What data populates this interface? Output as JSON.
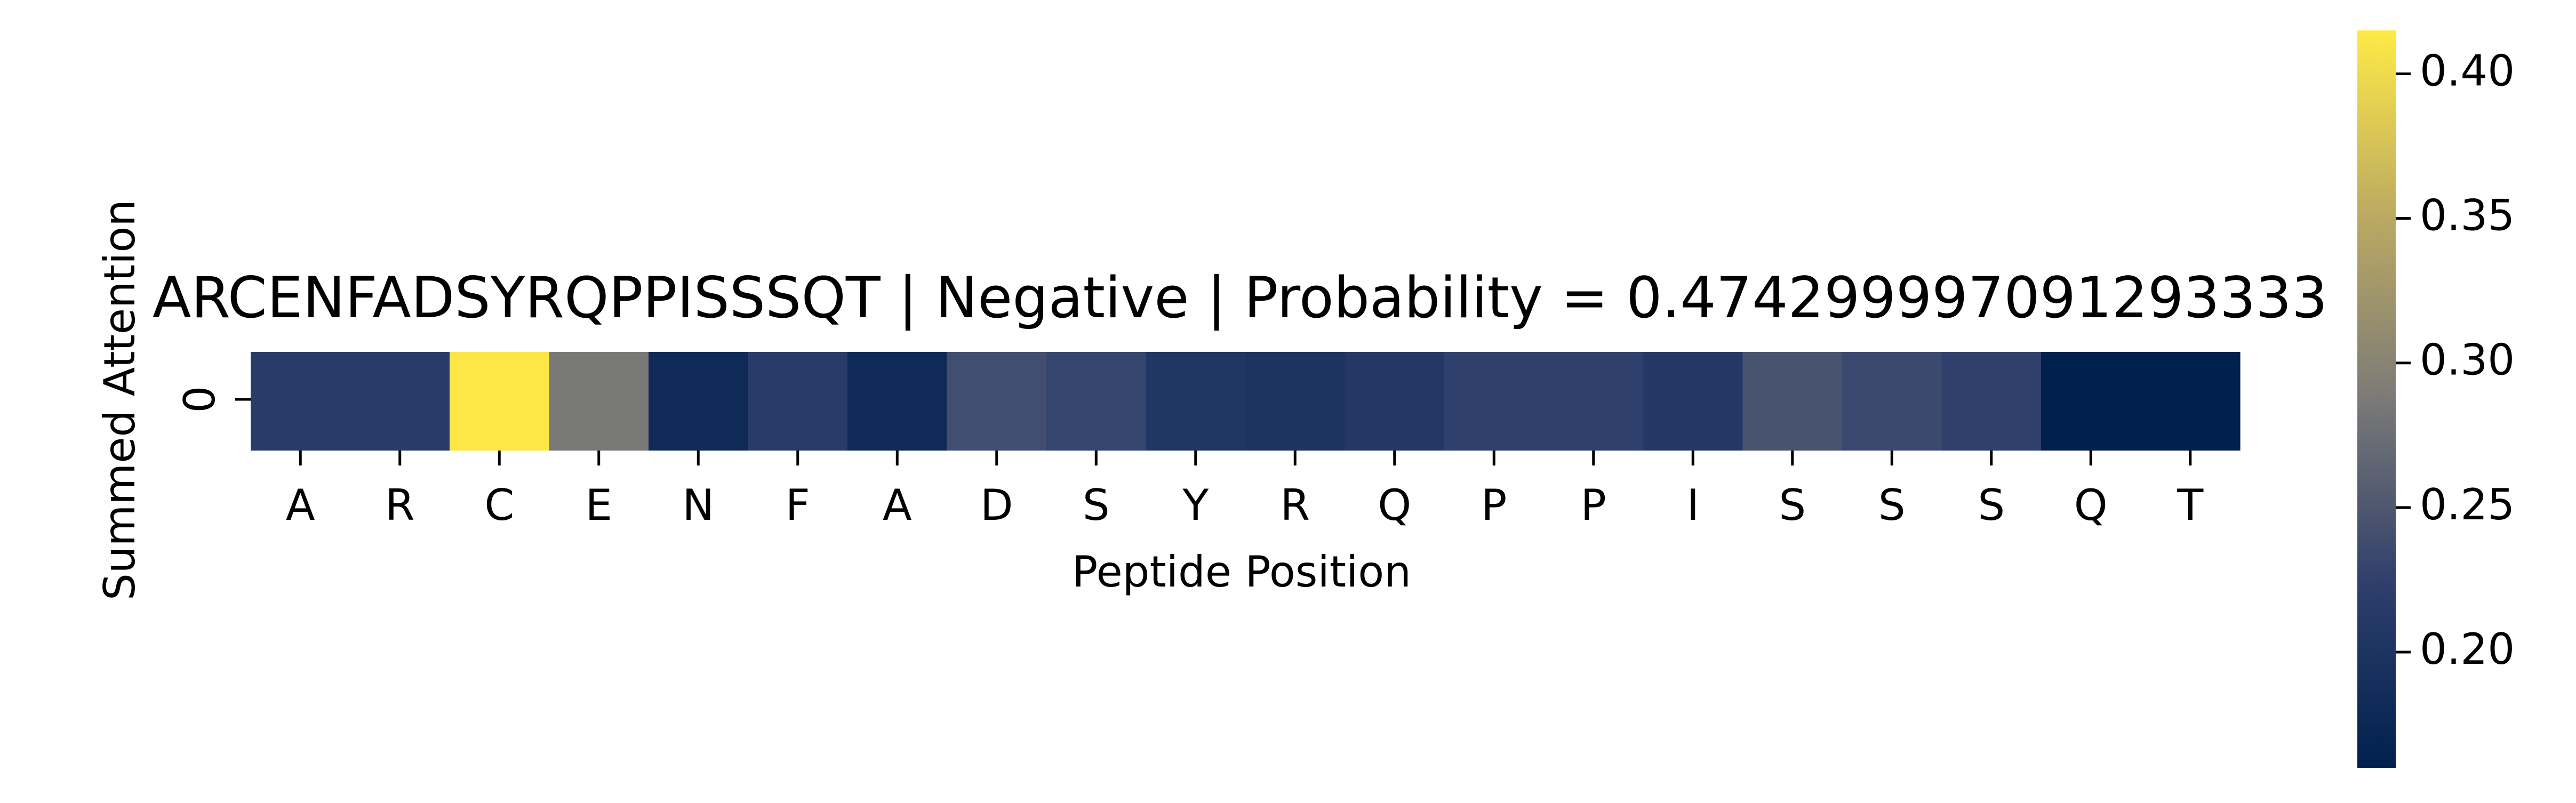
{
  "chart_data": {
    "type": "heatmap",
    "title": "ARCENFADSYRQPPISSSQT | Negative | Probability = 0.474299997091293333",
    "xlabel": "Peptide Position",
    "ylabel": "Summed Attention",
    "x_categories": [
      "A",
      "R",
      "C",
      "E",
      "N",
      "F",
      "A",
      "D",
      "S",
      "Y",
      "R",
      "Q",
      "P",
      "P",
      "I",
      "S",
      "S",
      "S",
      "Q",
      "T"
    ],
    "y_categories": [
      "0"
    ],
    "values": [
      [
        0.215,
        0.215,
        0.412,
        0.285,
        0.18,
        0.215,
        0.18,
        0.24,
        0.23,
        0.205,
        0.2,
        0.21,
        0.225,
        0.225,
        0.21,
        0.245,
        0.235,
        0.225,
        0.16,
        0.16
      ]
    ],
    "colorbar": {
      "min": 0.16,
      "max": 0.415,
      "ticks": [
        0.2,
        0.25,
        0.3,
        0.35,
        0.4
      ],
      "tick_labels": [
        "0.20",
        "0.25",
        "0.30",
        "0.35",
        "0.40"
      ],
      "colormap": "cividis"
    }
  }
}
